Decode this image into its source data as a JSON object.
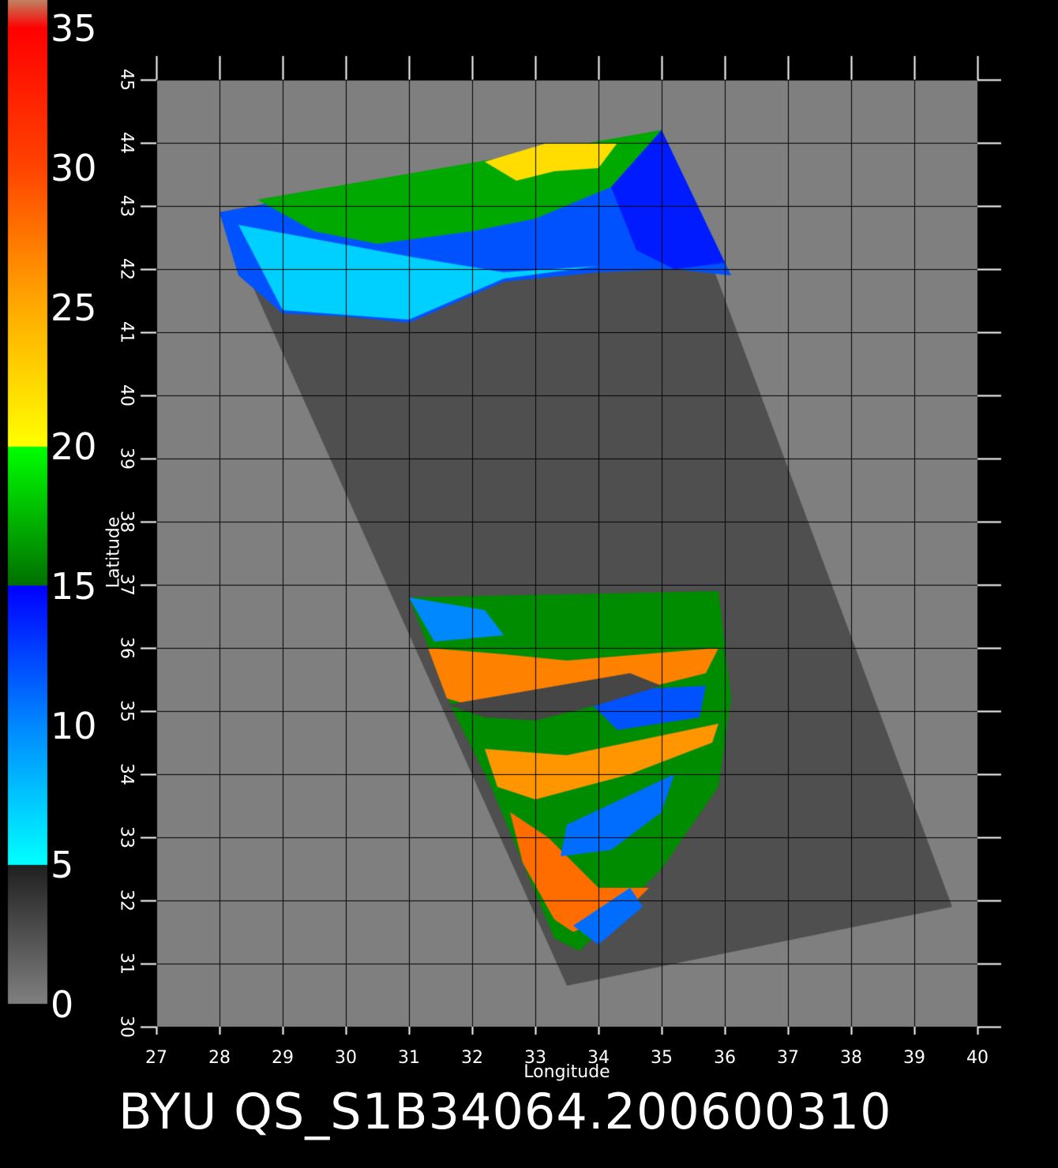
{
  "footer": {
    "title": "BYU  QS_S1B34064.200600310"
  },
  "colorbar": {
    "labels": [
      "0",
      "5",
      "10",
      "15",
      "20",
      "25",
      "30",
      "35"
    ],
    "stops": [
      {
        "value": 0,
        "color": "#808080"
      },
      {
        "value": 5,
        "color": "#202020"
      },
      {
        "value": 5.01,
        "color": "#00ffff"
      },
      {
        "value": 10,
        "color": "#0088ff"
      },
      {
        "value": 15,
        "color": "#0000ff"
      },
      {
        "value": 15.01,
        "color": "#007000"
      },
      {
        "value": 20,
        "color": "#00ff00"
      },
      {
        "value": 20.01,
        "color": "#ffff00"
      },
      {
        "value": 25,
        "color": "#ffaa00"
      },
      {
        "value": 30,
        "color": "#ff4400"
      },
      {
        "value": 35,
        "color": "#ff0000"
      },
      {
        "value": 36,
        "color": "#c08060"
      }
    ]
  },
  "axes": {
    "xlabel": "Longitude",
    "ylabel": "Latitude",
    "lon_ticks": [
      "27",
      "28",
      "29",
      "30",
      "31",
      "32",
      "33",
      "34",
      "35",
      "36",
      "37",
      "38",
      "39",
      "40"
    ],
    "lat_ticks": [
      "30",
      "31",
      "32",
      "33",
      "34",
      "35",
      "36",
      "37",
      "38",
      "39",
      "40",
      "41",
      "42",
      "43",
      "44",
      "45"
    ],
    "lon_range": [
      27,
      40
    ],
    "lat_range": [
      30,
      45
    ]
  },
  "swath": {
    "corners_lonlat": [
      [
        28.0,
        42.9
      ],
      [
        35.0,
        44.2
      ],
      [
        39.6,
        31.9
      ],
      [
        33.5,
        30.65
      ]
    ],
    "fill": "#4f4f4f"
  },
  "colors": {
    "background": "#7f7f7f",
    "grid": "#000000"
  }
}
